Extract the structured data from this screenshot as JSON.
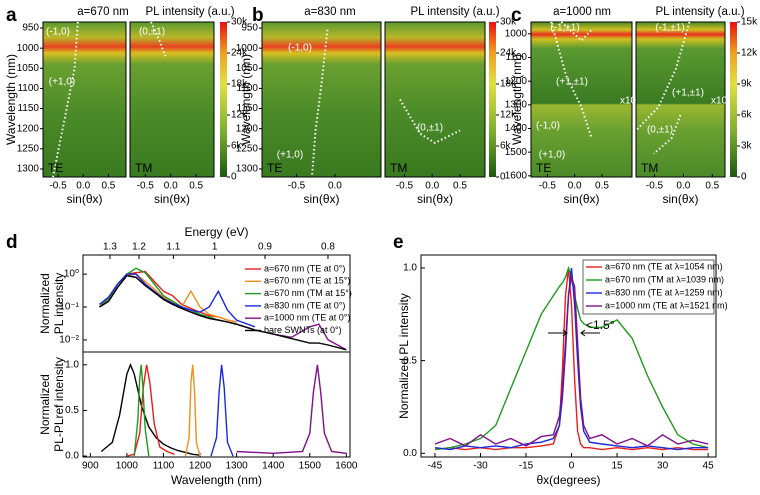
{
  "chart_data": [
    {
      "type": "heatmap",
      "panel": "a",
      "title": "a=670 nm",
      "colorbar_label": "PL intensity (a.u.)",
      "ylabel": "Wavelength (nm)",
      "y_inverted": true,
      "ylim": [
        935,
        1320
      ],
      "yticks": [
        950,
        1000,
        1050,
        1100,
        1150,
        1200,
        1250,
        1300
      ],
      "clim": [
        0,
        30000
      ],
      "cticks": [
        {
          "value": 0,
          "label": "0"
        },
        {
          "value": 6000,
          "label": "6k"
        },
        {
          "value": 12000,
          "label": "12k"
        },
        {
          "value": 18000,
          "label": "18k"
        },
        {
          "value": 24000,
          "label": "24k"
        },
        {
          "value": 30000,
          "label": "30k"
        }
      ],
      "subplots": [
        {
          "label": "TE",
          "xlabel": "sin(θx)",
          "xlim": [
            -0.8,
            0.85
          ],
          "xticks": [
            -0.5,
            {
              "value": 0,
              "label": "0.0"
            },
            0.5
          ]
        },
        {
          "label": "TM",
          "xlabel": "sin(θx)",
          "xlim": [
            -0.8,
            0.85
          ],
          "xticks": [
            -0.5,
            {
              "value": 0,
              "label": "0.0"
            },
            0.5
          ]
        }
      ],
      "annotations": [
        "(-1,0)",
        "(+1,0)",
        "(0,±1)"
      ]
    },
    {
      "type": "heatmap",
      "panel": "b",
      "title": "a=830 nm",
      "colorbar_label": "PL intensity (a.u.)",
      "ylabel": "Wavelength (nm)",
      "y_inverted": true,
      "ylim": [
        935,
        1320
      ],
      "yticks": [
        950,
        1000,
        1050,
        1100,
        1150,
        1200,
        1250,
        1300
      ],
      "clim": [
        0,
        30000
      ],
      "cticks": [
        {
          "value": 0,
          "label": "0"
        },
        {
          "value": 6000,
          "label": "6k"
        },
        {
          "value": 12000,
          "label": "12k"
        },
        {
          "value": 18000,
          "label": "18k"
        },
        {
          "value": 24000,
          "label": "24k"
        },
        {
          "value": 30000,
          "label": "30k"
        }
      ],
      "subplots": [
        {
          "label": "TE",
          "xlabel": "sin(θx)",
          "xlim": [
            -0.95,
            0.6
          ],
          "xticks": [
            -0.5,
            {
              "value": 0,
              "label": "0.0"
            }
          ]
        },
        {
          "label": "TM",
          "xlabel": "sin(θx)",
          "xlim": [
            -0.85,
            0.95
          ],
          "xticks": [
            -0.5,
            {
              "value": 0,
              "label": "0.0"
            },
            0.5
          ]
        }
      ],
      "annotations": [
        "(-1,0)",
        "(+1,0)",
        "(0,±1)"
      ]
    },
    {
      "type": "heatmap",
      "panel": "c",
      "title": "a=1000 nm",
      "colorbar_label": "PL intensity (a.u.)",
      "ylabel": "Wavelength (nm)",
      "y_inverted": true,
      "ylim": [
        950,
        1605
      ],
      "yticks": [
        1000,
        1100,
        1200,
        1300,
        1400,
        1500,
        1600
      ],
      "clim": [
        0,
        15000
      ],
      "cticks": [
        {
          "value": 0,
          "label": "0"
        },
        {
          "value": 3000,
          "label": "3k"
        },
        {
          "value": 6000,
          "label": "6k"
        },
        {
          "value": 9000,
          "label": "9k"
        },
        {
          "value": 12000,
          "label": "12k"
        },
        {
          "value": 15000,
          "label": "15k"
        }
      ],
      "subplots": [
        {
          "label": "TE",
          "xlabel": "sin(θx)",
          "xlim": [
            -0.8,
            1.05
          ],
          "xticks": [
            -0.5,
            {
              "value": 0,
              "label": "0.0"
            },
            0.5
          ]
        },
        {
          "label": "TM",
          "xlabel": "sin(θx)",
          "xlim": [
            -0.82,
            0.72
          ],
          "xticks": [
            -0.5,
            {
              "value": 0,
              "label": "0.0"
            },
            0.5
          ]
        }
      ],
      "annotations": [
        "(-1,±1)",
        "(-1,±1)",
        "(+1,±1)",
        "(+1,±1)",
        "x10",
        "x10",
        "(-1,0)",
        "(0,±1)",
        "(+1,0)"
      ]
    },
    {
      "type": "line",
      "panel": "d",
      "ylabel": [
        "Normalized",
        "PL intensity"
      ],
      "x2label": "Energy (eV)",
      "x2ticks": [
        1.3,
        1.2,
        1.1,
        1,
        0.9,
        0.8
      ],
      "xlim": [
        880,
        1610
      ],
      "log_y": true,
      "ylim": [
        0.0043,
        3.8
      ],
      "yticks": [
        {
          "value": 1,
          "label": "10⁰"
        },
        {
          "value": 0.1,
          "label": "10⁻¹"
        },
        {
          "value": 0.01,
          "label": "10⁻²"
        }
      ],
      "legend": "upper right",
      "x": [
        925,
        950,
        975,
        1000,
        1025,
        1050,
        1075,
        1100,
        1125,
        1150,
        1175,
        1200,
        1225,
        1250,
        1275,
        1300,
        1350,
        1400,
        1450,
        1500,
        1525,
        1550,
        1600
      ],
      "series": [
        {
          "name": "a=670 nm (TE at 0°)",
          "color": "#e8201a",
          "values": [
            0.12,
            0.18,
            0.5,
            1.0,
            1.1,
            1.2,
            0.6,
            0.3,
            0.22,
            0.12,
            0.09,
            0.07,
            0.055,
            0.05,
            0.04,
            0.035,
            null,
            null,
            null,
            null,
            null,
            null,
            null
          ]
        },
        {
          "name": "a=670 nm (TE at 15°)",
          "color": "#f0901a",
          "values": [
            0.12,
            0.2,
            0.5,
            0.9,
            1.0,
            0.6,
            0.35,
            0.2,
            0.14,
            0.1,
            0.3,
            0.1,
            0.06,
            0.05,
            0.04,
            0.035,
            null,
            null,
            null,
            null,
            null,
            null,
            null
          ]
        },
        {
          "name": "a=670 nm (TM at 15°)",
          "color": "#1f9a1f",
          "values": [
            0.1,
            0.18,
            0.5,
            1.0,
            1.5,
            1.1,
            0.5,
            0.22,
            0.15,
            0.1,
            0.08,
            0.06,
            0.05,
            0.04,
            0.035,
            0.03,
            null,
            null,
            null,
            null,
            null,
            null,
            null
          ]
        },
        {
          "name": "a=830 nm (TE at 0°)",
          "color": "#1a2adc",
          "values": [
            0.12,
            0.2,
            0.5,
            1.0,
            1.0,
            0.5,
            0.3,
            0.18,
            0.13,
            0.1,
            0.08,
            0.07,
            0.1,
            0.3,
            0.08,
            0.04,
            0.025,
            null,
            null,
            null,
            null,
            null,
            null
          ]
        },
        {
          "name": "a=1000 nm (TE at 0°)",
          "color": "#80108a",
          "values": [
            0.1,
            0.15,
            0.4,
            0.9,
            0.8,
            0.45,
            0.28,
            0.17,
            0.12,
            0.09,
            0.07,
            0.055,
            0.045,
            0.04,
            0.035,
            0.03,
            0.02,
            0.015,
            0.012,
            0.025,
            0.03,
            0.01,
            0.005
          ]
        },
        {
          "name": "bare SWNTs (at 0°)",
          "color": "#000000",
          "values": [
            0.1,
            0.15,
            0.4,
            0.9,
            0.8,
            0.45,
            0.28,
            0.17,
            0.12,
            0.09,
            0.07,
            0.055,
            0.045,
            0.04,
            0.035,
            0.03,
            0.02,
            0.015,
            0.011,
            0.008,
            0.008,
            0.007,
            0.005
          ]
        }
      ]
    },
    {
      "type": "line",
      "ylabel": [
        "Normalized",
        "PL-PLref intensity"
      ],
      "xlabel": "Wavelength (nm)",
      "xlim": [
        880,
        1610
      ],
      "xticks": [
        900,
        1000,
        1100,
        1200,
        1300,
        1400,
        1500,
        1600
      ],
      "ylim": [
        -0.01,
        1.14
      ],
      "yticks": [
        {
          "value": 0,
          "label": "0.0"
        },
        {
          "value": 0.5,
          "label": "0.5"
        },
        {
          "value": 1,
          "label": "1.0"
        }
      ],
      "series": [
        {
          "color": "#000000",
          "x": [
            930,
            960,
            980,
            1000,
            1010,
            1020,
            1040,
            1060,
            1080,
            1100,
            1120,
            1140,
            1160,
            1180,
            1200
          ],
          "values": [
            0.05,
            0.15,
            0.45,
            0.9,
            1.0,
            0.9,
            0.55,
            0.32,
            0.2,
            0.13,
            0.09,
            0.06,
            0.04,
            0.02,
            0.01
          ]
        },
        {
          "color": "#e8201a",
          "x": [
            1000,
            1020,
            1035,
            1045,
            1054,
            1063,
            1075,
            1090,
            1110,
            1130
          ],
          "values": [
            0,
            0.02,
            0.25,
            0.75,
            1.0,
            0.8,
            0.35,
            0.1,
            0.05,
            0.02
          ]
        },
        {
          "color": "#f0901a",
          "x": [
            1160,
            1170,
            1175,
            1180,
            1185,
            1190,
            1200
          ],
          "values": [
            0,
            0.2,
            0.8,
            1.0,
            0.7,
            0.15,
            0
          ]
        },
        {
          "color": "#1f9a1f",
          "x": [
            1020,
            1030,
            1035,
            1039,
            1043,
            1050,
            1060
          ],
          "values": [
            0,
            0.4,
            0.85,
            1.0,
            0.8,
            0.3,
            0
          ]
        },
        {
          "color": "#1a2adc",
          "x": [
            1230,
            1245,
            1252,
            1259,
            1266,
            1275,
            1290
          ],
          "values": [
            0,
            0.2,
            0.7,
            1.0,
            0.75,
            0.15,
            0
          ]
        },
        {
          "color": "#80108a",
          "x": [
            1300,
            1400,
            1480,
            1500,
            1510,
            1521,
            1530,
            1540,
            1560,
            1600
          ],
          "values": [
            0.05,
            0.03,
            0.05,
            0.25,
            0.7,
            1.0,
            0.7,
            0.25,
            0.05,
            0.03
          ]
        }
      ]
    },
    {
      "type": "line",
      "panel": "e",
      "ylabel": "Normalized PL intensity",
      "xlabel": "θx(degrees)",
      "xlim": [
        -49.6,
        47.6
      ],
      "xticks": [
        -45,
        -30,
        -15,
        0,
        15,
        30,
        45
      ],
      "ylim": [
        -0.02,
        1.07
      ],
      "yticks": [
        {
          "value": 0,
          "label": "0.0"
        },
        {
          "value": 0.5,
          "label": "0.5"
        },
        {
          "value": 1,
          "label": "1.0"
        }
      ],
      "legend": "upper right",
      "annotations": [
        "<1.5°"
      ],
      "x": [
        -45,
        -40,
        -35,
        -30,
        -25,
        -20,
        -15,
        -10,
        -6,
        -4,
        -3,
        -2,
        -1,
        0,
        1,
        2,
        3,
        4,
        6,
        10,
        15,
        20,
        25,
        30,
        35,
        40,
        45
      ],
      "series": [
        {
          "name": "a=670 nm (TE at λ=1054 nm)",
          "color": "#e8201a",
          "values": [
            0.02,
            0.03,
            0.02,
            0.03,
            0.02,
            0.03,
            0.03,
            0.04,
            0.05,
            0.15,
            0.45,
            0.85,
            1.0,
            0.8,
            0.4,
            0.12,
            0.05,
            0.03,
            0.03,
            0.02,
            0.03,
            0.02,
            0.03,
            0.02,
            0.03,
            0.02,
            0.02
          ]
        },
        {
          "name": "a=670 nm (TM at λ=1039 nm)",
          "color": "#1f9a1f",
          "values": [
            0.02,
            0.03,
            0.05,
            0.08,
            0.15,
            0.35,
            0.55,
            0.75,
            0.85,
            0.9,
            0.92,
            0.95,
            1.0,
            0.95,
            0.85,
            0.78,
            0.72,
            0.7,
            0.68,
            0.68,
            0.72,
            0.62,
            0.42,
            0.25,
            0.1,
            0.05,
            0.03
          ]
        },
        {
          "name": "a=830 nm (TE at λ=1259 nm)",
          "color": "#1a2adc",
          "values": [
            0.03,
            0.02,
            0.04,
            0.03,
            0.04,
            0.03,
            0.05,
            0.06,
            0.08,
            0.15,
            0.3,
            0.55,
            0.85,
            1.0,
            0.8,
            0.5,
            0.25,
            0.12,
            0.06,
            0.05,
            0.04,
            0.03,
            0.04,
            0.03,
            0.02,
            0.03,
            0.03
          ]
        },
        {
          "name": "a=1000 nm (TE at λ=1521 nm)",
          "color": "#80108a",
          "values": [
            0.05,
            0.08,
            0.04,
            0.1,
            0.05,
            0.08,
            0.04,
            0.09,
            0.1,
            0.2,
            0.35,
            0.6,
            0.85,
            0.95,
            0.9,
            0.6,
            0.3,
            0.15,
            0.08,
            0.1,
            0.05,
            0.08,
            0.04,
            0.1,
            0.05,
            0.07,
            0.05
          ]
        }
      ]
    }
  ]
}
